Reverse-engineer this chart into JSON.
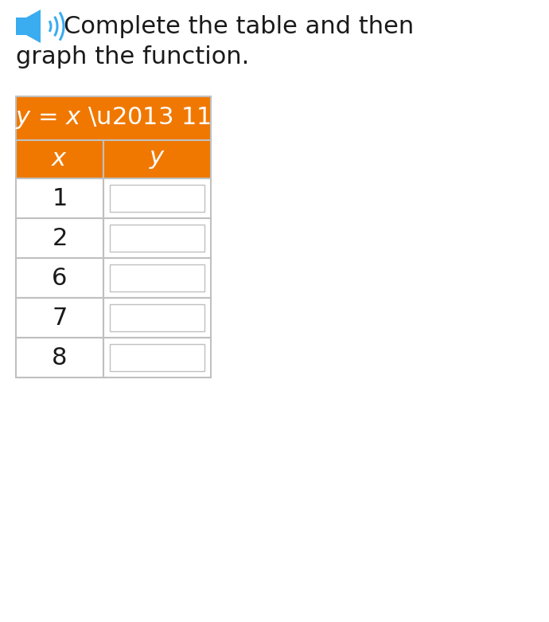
{
  "title_line1": "Complete the table and then",
  "title_line2": "graph the function.",
  "equation": "y = x – 11",
  "col_headers": [
    "x",
    "y"
  ],
  "x_values": [
    1,
    2,
    6,
    7,
    8
  ],
  "header_bg_color": "#F07800",
  "table_border_color": "#C0C0C0",
  "white_bg": "#FFFFFF",
  "text_color_white": "#FFFFFF",
  "text_color_dark": "#1a1a1a",
  "speaker_icon_color": "#3AACF0",
  "background_color": "#FFFFFF",
  "title_fontsize": 22,
  "equation_fontsize": 22,
  "header_fontsize": 22,
  "data_fontsize": 22,
  "fig_width": 6.9,
  "fig_height": 7.81
}
